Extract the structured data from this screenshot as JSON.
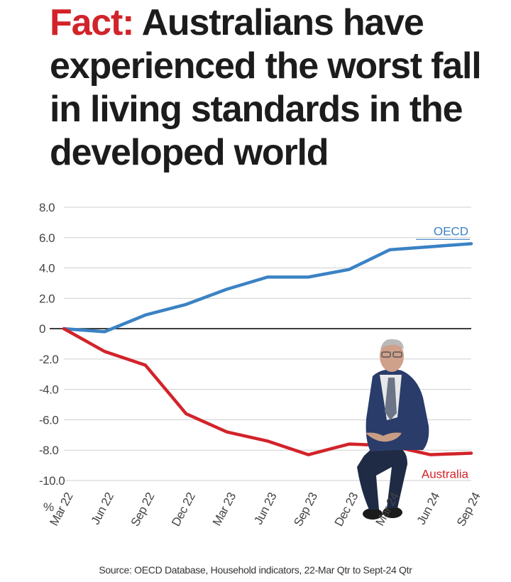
{
  "headline": {
    "kicker": "Fact:",
    "text": "Australians have experienced the worst fall in living standards in the developed world"
  },
  "chart_data": {
    "type": "line",
    "categories": [
      "Mar 22",
      "Jun 22",
      "Sep 22",
      "Dec 22",
      "Mar 23",
      "Jun 23",
      "Sep 23",
      "Dec 23",
      "Mar 24",
      "Jun 24",
      "Sep 24"
    ],
    "y_ticks": [
      "8.0",
      "6.0",
      "4.0",
      "2.0",
      "0",
      "-2.0",
      "-4.0",
      "-6.0",
      "-8.0",
      "-10.0"
    ],
    "y_unit": "%",
    "ylim": [
      -10,
      8
    ],
    "grid": true,
    "series": [
      {
        "name": "OECD",
        "color": "#3b82c4",
        "values": [
          0,
          -0.2,
          0.9,
          1.6,
          2.6,
          3.4,
          3.4,
          3.9,
          5.2,
          5.4,
          5.6
        ]
      },
      {
        "name": "Australia",
        "color": "#d2232a",
        "values": [
          0,
          -1.5,
          -2.4,
          -5.6,
          -6.8,
          -7.4,
          -8.3,
          -7.6,
          -7.7,
          -8.3,
          -8.2
        ]
      }
    ],
    "zero_line": true
  },
  "photo": {
    "icon": "person-seated-photo"
  },
  "source": "Source: OECD Database, Household indicators, 22-Mar Qtr to Sept-24 Qtr"
}
